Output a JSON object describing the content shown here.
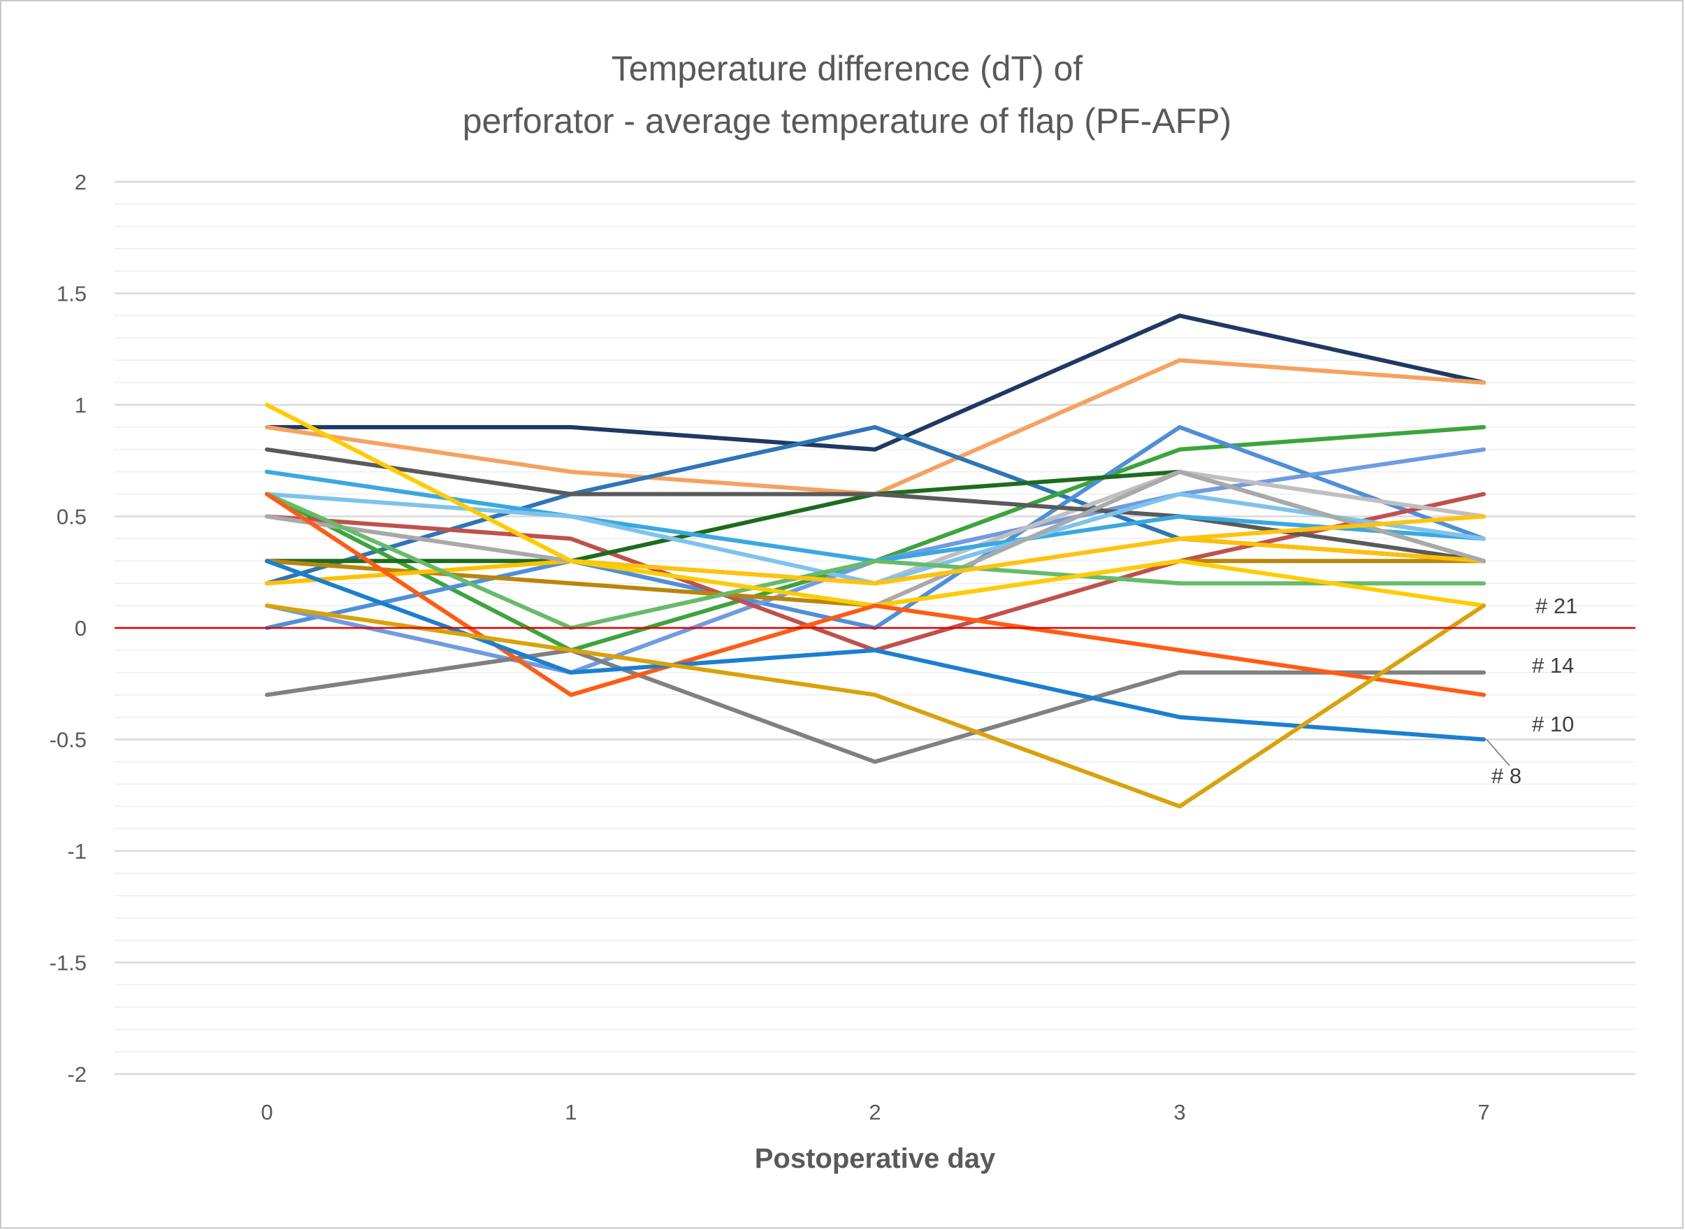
{
  "chart_data": {
    "type": "line",
    "title_lines": [
      "Temperature difference (dT) of",
      "perforator - average temperature of flap (PF-AFP)"
    ],
    "xlabel": "Postoperative day",
    "ylabel": "",
    "categories": [
      "0",
      "1",
      "2",
      "3",
      "7"
    ],
    "ylim": [
      -2,
      2
    ],
    "y_ticks": [
      "2",
      "1.5",
      "1",
      "0.5",
      "0",
      "-0.5",
      "-1",
      "-1.5",
      "-2"
    ],
    "major_gridlines": true,
    "minor_gridlines": true,
    "legend": "none",
    "reference_line": {
      "y": 0,
      "color": "#e00000"
    },
    "series": [
      {
        "color": "#1f3864",
        "values": [
          0.9,
          0.9,
          0.8,
          1.4,
          1.1
        ]
      },
      {
        "color": "#f4a261",
        "values": [
          0.9,
          0.7,
          0.6,
          1.2,
          1.1
        ]
      },
      {
        "color": "#2e75b6",
        "values": [
          0.2,
          0.6,
          0.9,
          0.4,
          0.3
        ]
      },
      {
        "color": "#3ca43c",
        "values": [
          0.6,
          -0.1,
          0.3,
          0.8,
          0.9
        ]
      },
      {
        "color": "#4f8fd8",
        "values": [
          0.0,
          0.3,
          0.0,
          0.9,
          0.4
        ]
      },
      {
        "color": "#6f9be0",
        "values": [
          0.1,
          -0.2,
          0.3,
          0.6,
          0.8
        ]
      },
      {
        "color": "#c0504d",
        "values": [
          0.5,
          0.4,
          -0.1,
          0.3,
          0.6
        ]
      },
      {
        "color": "#1e6b1e",
        "values": [
          0.3,
          0.3,
          0.6,
          0.7,
          0.3
        ]
      },
      {
        "color": "#bfbfbf",
        "values": [
          0.5,
          0.3,
          0.2,
          0.7,
          0.5
        ]
      },
      {
        "color": "#5a5a5a",
        "values": [
          0.8,
          0.6,
          0.6,
          0.5,
          0.3
        ]
      },
      {
        "color": "#3aa8e0",
        "values": [
          0.7,
          0.5,
          0.3,
          0.5,
          0.4
        ]
      },
      {
        "color": "#7dc3ec",
        "values": [
          0.6,
          0.5,
          0.2,
          0.6,
          0.4
        ]
      },
      {
        "color": "#b8860b",
        "values": [
          0.3,
          0.2,
          0.1,
          0.3,
          0.3
        ]
      },
      {
        "color": "#ffc000",
        "values": [
          0.2,
          0.3,
          0.2,
          0.4,
          0.3
        ]
      },
      {
        "color": "#a9a9a9",
        "values": [
          0.5,
          0.3,
          0.1,
          0.7,
          0.3
        ]
      },
      {
        "color": "#66bb6a",
        "values": [
          0.6,
          0.0,
          0.3,
          0.2,
          0.2
        ]
      },
      {
        "color": "#ffc20e",
        "values": [
          1.0,
          0.3,
          0.2,
          0.4,
          0.5
        ]
      },
      {
        "color": "#ffcc00",
        "values": [
          1.0,
          0.3,
          0.1,
          0.3,
          0.1
        ]
      },
      {
        "color": "#808080",
        "values": [
          -0.3,
          -0.1,
          -0.6,
          -0.2,
          -0.2
        ]
      },
      {
        "color": "#ff5b14",
        "values": [
          0.6,
          -0.3,
          0.1,
          -0.1,
          -0.3
        ]
      },
      {
        "color": "#1b7fcf",
        "values": [
          0.3,
          -0.2,
          -0.1,
          -0.4,
          -0.5
        ]
      },
      {
        "color": "#d9a20b",
        "values": [
          0.1,
          -0.1,
          -0.3,
          -0.8,
          0.1
        ]
      }
    ],
    "annotations": [
      {
        "text": "# 21",
        "y": 0.1
      },
      {
        "text": "# 14",
        "y": -0.2
      },
      {
        "text": "# 10",
        "y": -0.3
      },
      {
        "text": "# 8",
        "y": -0.5
      }
    ]
  }
}
